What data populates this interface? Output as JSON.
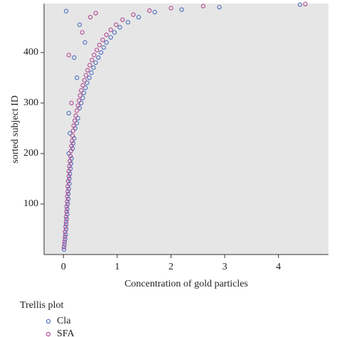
{
  "chart_data": {
    "type": "scatter",
    "x_label": "Concentration of gold particles",
    "y_label": "sorted subject ID",
    "legend_title": "Trellis plot",
    "xlim": [
      -0.36,
      4.93
    ],
    "xticks": [
      0,
      1,
      2,
      3,
      4
    ],
    "ylim": [
      0,
      497
    ],
    "yticks": [
      100,
      200,
      300,
      400
    ],
    "background": "#e6e6e6",
    "series": [
      {
        "name": "Cla",
        "color": "#4a6cc0",
        "x": [
          0.01,
          0.02,
          0.03,
          0.04,
          0.05,
          0.05,
          0.06,
          0.07,
          0.07,
          0.08,
          0.09,
          0.09,
          0.1,
          0.11,
          0.11,
          0.12,
          0.13,
          0.14,
          0.15,
          0.1,
          0.17,
          0.18,
          0.2,
          0.12,
          0.22,
          0.25,
          0.27,
          0.1,
          0.3,
          0.33,
          0.36,
          0.38,
          0.41,
          0.44,
          0.48,
          0.52,
          0.56,
          0.6,
          0.65,
          0.7,
          0.75,
          0.8,
          0.88,
          0.95,
          1.05,
          1.2,
          1.4,
          1.7,
          2.2,
          2.9,
          4.4,
          0.05,
          0.3,
          0.2,
          0.25,
          0.4
        ],
        "values": [
          10,
          20,
          30,
          40,
          50,
          60,
          70,
          80,
          90,
          100,
          110,
          120,
          130,
          140,
          150,
          160,
          170,
          180,
          190,
          200,
          210,
          220,
          230,
          240,
          250,
          260,
          270,
          280,
          290,
          300,
          310,
          320,
          330,
          340,
          350,
          360,
          370,
          380,
          390,
          400,
          410,
          420,
          430,
          440,
          450,
          460,
          470,
          480,
          485,
          490,
          495,
          482,
          455,
          390,
          350,
          420
        ]
      },
      {
        "name": "SFA",
        "color": "#b0468f",
        "x": [
          0.01,
          0.02,
          0.03,
          0.03,
          0.04,
          0.05,
          0.05,
          0.06,
          0.06,
          0.07,
          0.07,
          0.08,
          0.08,
          0.09,
          0.1,
          0.1,
          0.11,
          0.12,
          0.13,
          0.14,
          0.15,
          0.16,
          0.17,
          0.18,
          0.19,
          0.21,
          0.23,
          0.25,
          0.27,
          0.29,
          0.31,
          0.33,
          0.36,
          0.39,
          0.42,
          0.45,
          0.49,
          0.53,
          0.57,
          0.62,
          0.67,
          0.73,
          0.8,
          0.88,
          0.98,
          1.1,
          1.3,
          1.6,
          2.0,
          2.6,
          4.5,
          0.1,
          0.5,
          0.35,
          0.15,
          0.6
        ],
        "values": [
          15,
          25,
          35,
          45,
          55,
          65,
          75,
          85,
          95,
          105,
          115,
          125,
          135,
          145,
          155,
          165,
          175,
          185,
          195,
          205,
          215,
          225,
          235,
          245,
          255,
          265,
          275,
          285,
          295,
          305,
          315,
          325,
          335,
          345,
          355,
          365,
          375,
          385,
          395,
          405,
          415,
          425,
          435,
          445,
          455,
          465,
          475,
          483,
          488,
          492,
          496,
          395,
          470,
          440,
          300,
          478
        ]
      }
    ]
  }
}
